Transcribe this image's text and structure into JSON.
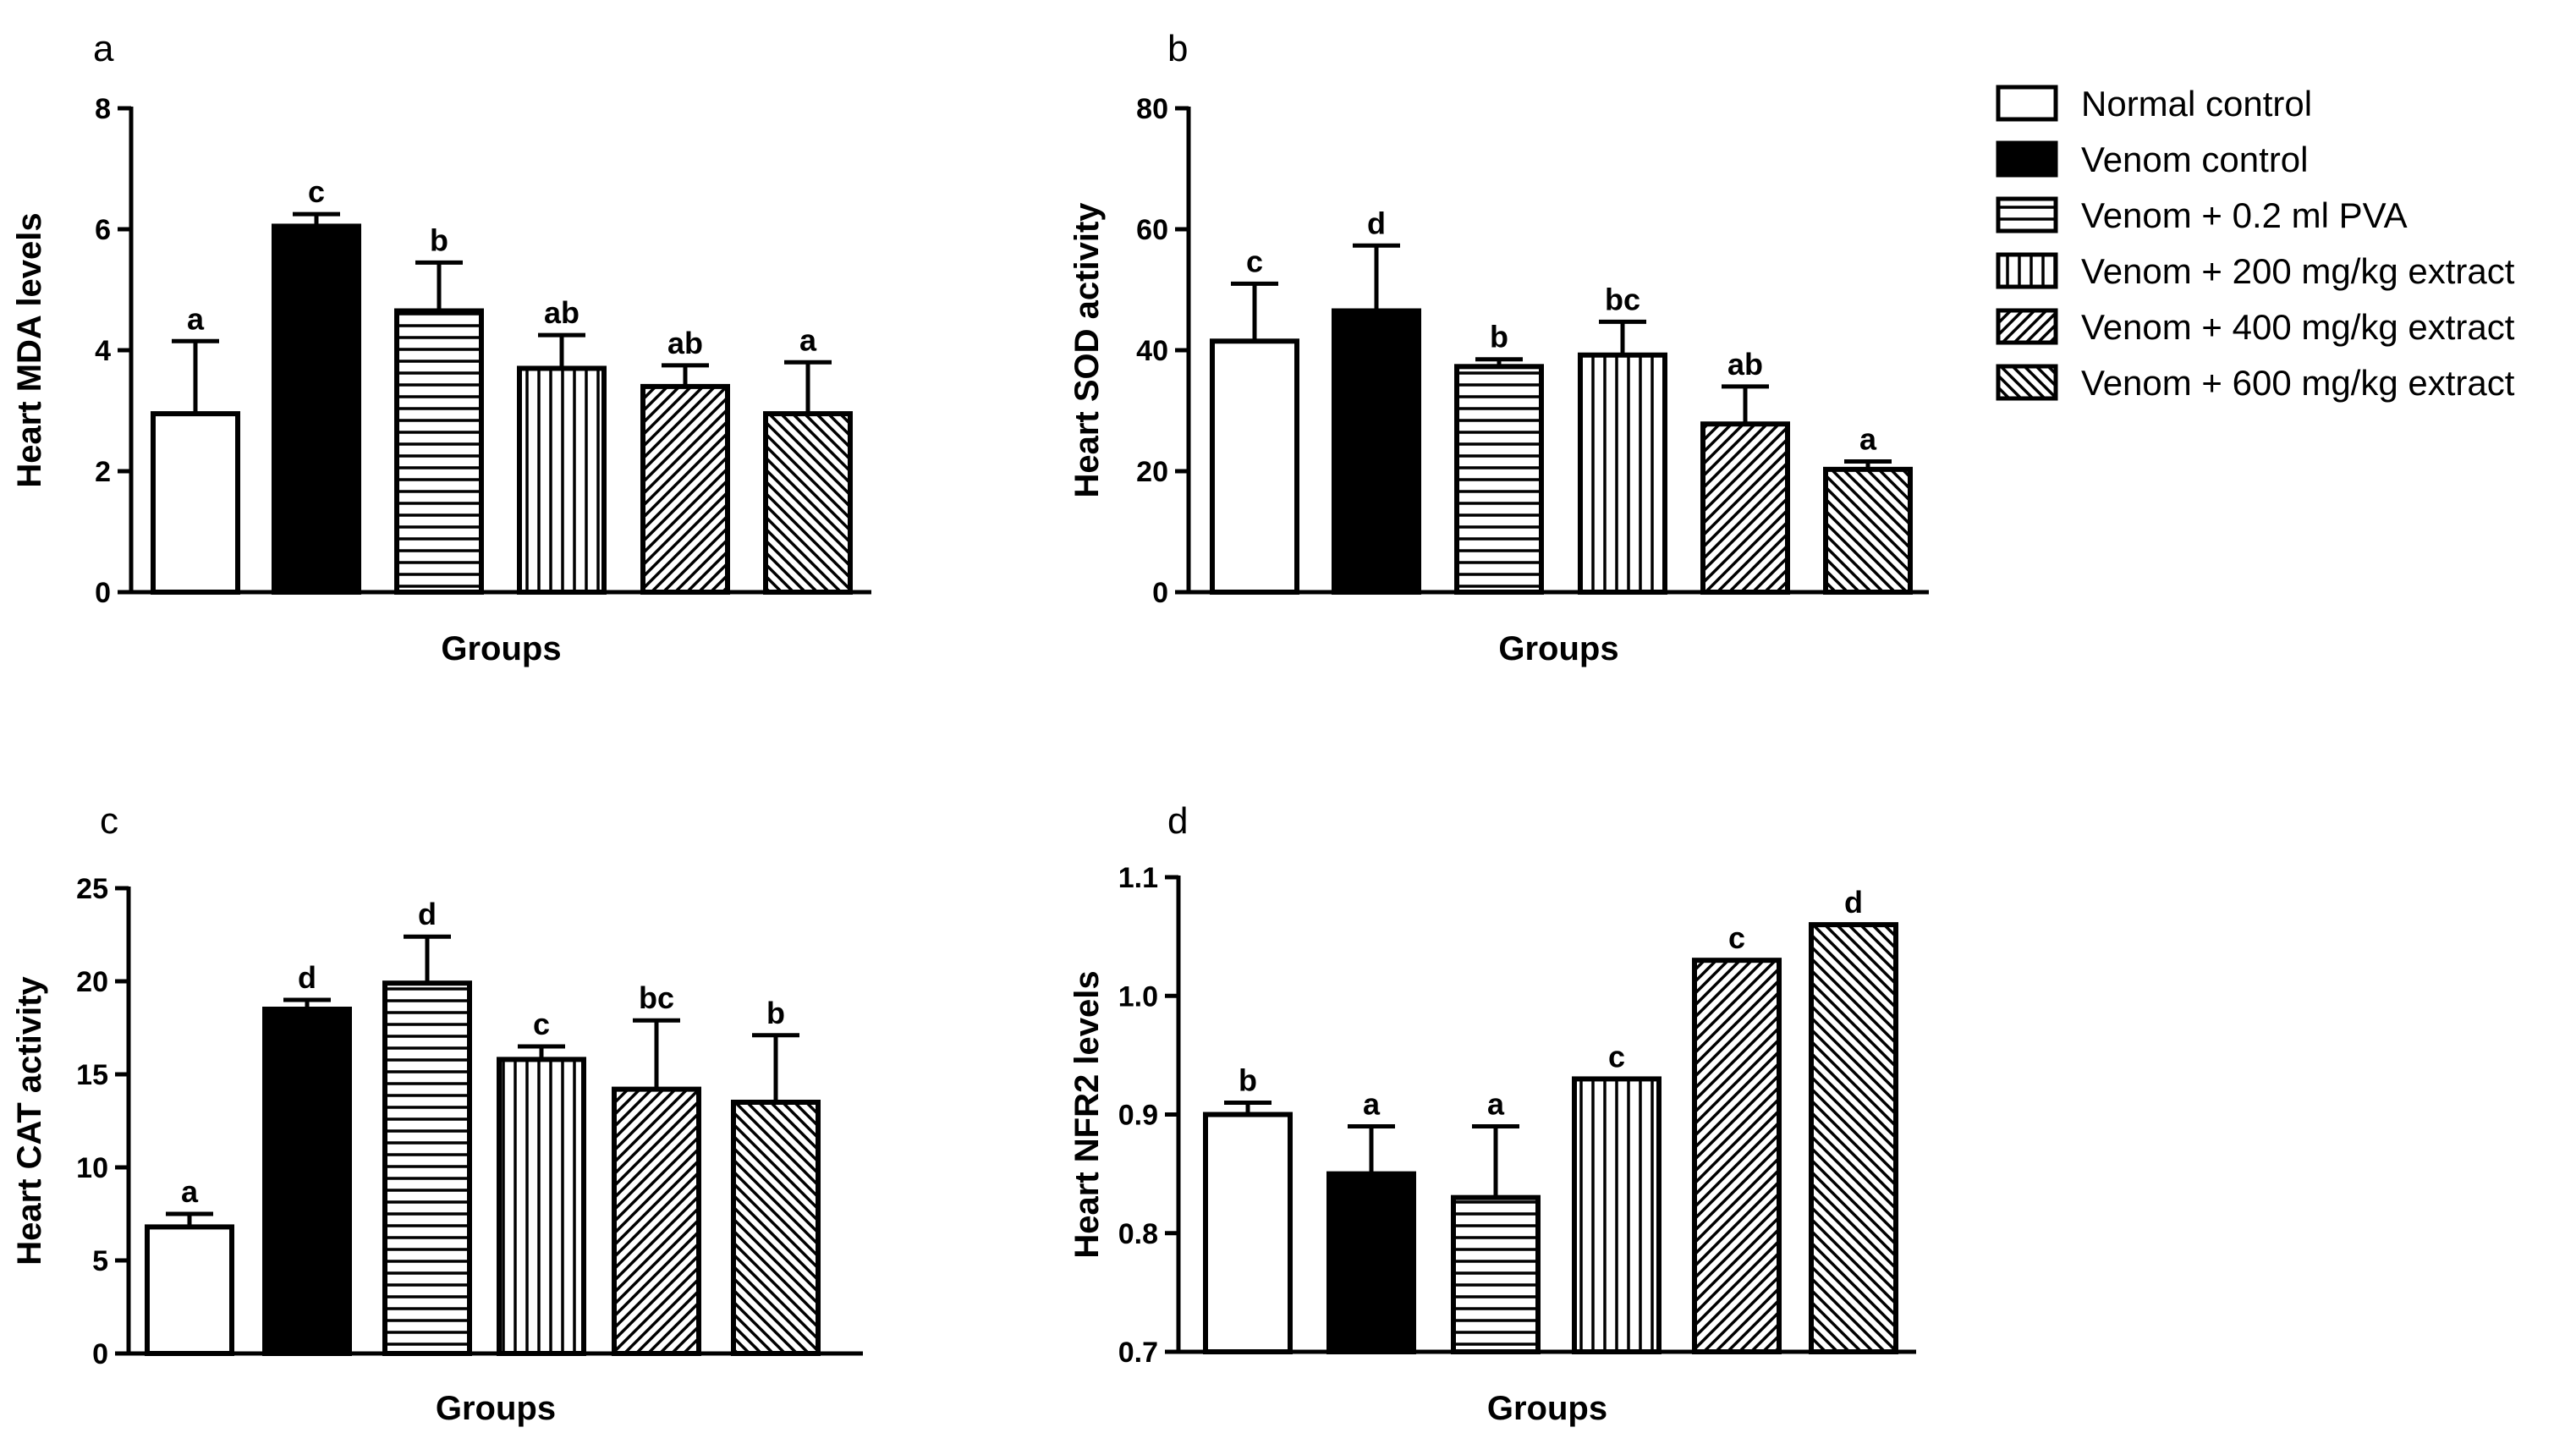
{
  "legend": [
    {
      "label": "Normal control",
      "pattern": "none"
    },
    {
      "label": "Venom control",
      "pattern": "solid"
    },
    {
      "label": "Venom + 0.2 ml PVA",
      "pattern": "hlines"
    },
    {
      "label": "Venom + 200 mg/kg extract",
      "pattern": "vlines"
    },
    {
      "label": "Venom + 400 mg/kg extract",
      "pattern": "diag-up"
    },
    {
      "label": "Venom + 600 mg/kg extract",
      "pattern": "diag-down"
    }
  ],
  "colors": {
    "ink": "#000000",
    "background": "#ffffff"
  },
  "chart_data": [
    {
      "type": "bar",
      "panel": "a",
      "xlabel": "Groups",
      "ylabel": "Heart MDA levels",
      "ylim": [
        0,
        8
      ],
      "yticks": [
        0,
        2,
        4,
        6,
        8
      ],
      "tick_labels": [
        "0",
        "2",
        "4",
        "6",
        "8"
      ],
      "values": [
        2.95,
        6.05,
        4.65,
        3.7,
        3.4,
        2.95
      ],
      "errors": [
        1.2,
        0.2,
        0.8,
        0.55,
        0.35,
        0.85
      ],
      "sig": [
        "a",
        "c",
        "b",
        "ab",
        "ab",
        "a"
      ]
    },
    {
      "type": "bar",
      "panel": "b",
      "xlabel": "Groups",
      "ylabel": "Heart SOD activity",
      "ylim": [
        0,
        80
      ],
      "yticks": [
        0,
        20,
        40,
        60,
        80
      ],
      "tick_labels": [
        "0",
        "20",
        "40",
        "60",
        "80"
      ],
      "values": [
        41.5,
        46.5,
        37.3,
        39.2,
        27.8,
        20.3
      ],
      "errors": [
        9.5,
        10.8,
        1.2,
        5.5,
        6.2,
        1.3
      ],
      "sig": [
        "c",
        "d",
        "b",
        "bc",
        "ab",
        "a"
      ]
    },
    {
      "type": "bar",
      "panel": "c",
      "xlabel": "Groups",
      "ylabel": "Heart CAT activity",
      "ylim": [
        0,
        25
      ],
      "yticks": [
        0,
        5,
        10,
        15,
        20,
        25
      ],
      "tick_labels": [
        "0",
        "5",
        "10",
        "15",
        "20",
        "25"
      ],
      "values": [
        6.8,
        18.5,
        19.9,
        15.8,
        14.2,
        13.5
      ],
      "errors": [
        0.7,
        0.5,
        2.5,
        0.7,
        3.7,
        3.6
      ],
      "sig": [
        "a",
        "d",
        "d",
        "c",
        "bc",
        "b"
      ]
    },
    {
      "type": "bar",
      "panel": "d",
      "xlabel": "Groups",
      "ylabel": "Heart NFR2 levels",
      "ylim": [
        0.7,
        1.1
      ],
      "yticks": [
        0.7,
        0.8,
        0.9,
        1.0,
        1.1
      ],
      "tick_labels": [
        "0.7",
        "0.8",
        "0.9",
        "1.0",
        "1.1"
      ],
      "values": [
        0.9,
        0.85,
        0.83,
        0.93,
        1.03,
        1.06
      ],
      "errors": [
        0.01,
        0.04,
        0.06,
        0,
        0,
        0
      ],
      "sig": [
        "b",
        "a",
        "a",
        "c",
        "c",
        "d"
      ]
    }
  ]
}
